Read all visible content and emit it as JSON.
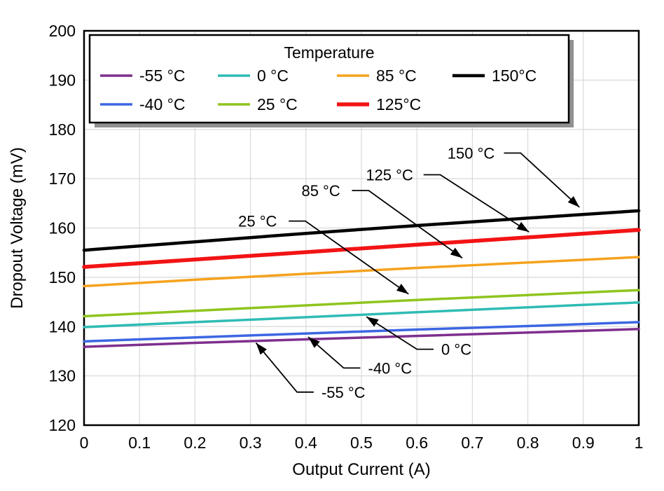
{
  "chart_data": {
    "type": "line",
    "title": "",
    "xlabel": "Output Current (A)",
    "ylabel": "Dropout Voltage (mV)",
    "xlim": [
      0,
      1
    ],
    "ylim": [
      120,
      200
    ],
    "grid": true,
    "grid_color": "#d9d9d9",
    "axis_color": "#000000",
    "xticks": {
      "values": [
        0,
        0.1,
        0.2,
        0.3,
        0.4,
        0.5,
        0.6,
        0.7,
        0.8,
        0.9,
        1
      ],
      "labels": [
        "0",
        "0.1",
        "0.2",
        "0.3",
        "0.4",
        "0.5",
        "0.6",
        "0.7",
        "0.8",
        "0.9",
        "1"
      ]
    },
    "yticks": {
      "values": [
        120,
        130,
        140,
        150,
        160,
        170,
        180,
        190,
        200
      ],
      "labels": [
        "120",
        "130",
        "140",
        "150",
        "160",
        "170",
        "180",
        "190",
        "200"
      ]
    },
    "x": [
      0,
      0.2,
      0.4,
      0.6,
      0.8,
      1.0
    ],
    "series": [
      {
        "name": "-55 °C",
        "color": "#7E2F8E",
        "line_width": 3.5,
        "values": [
          135.9,
          136.7,
          137.4,
          138.1,
          138.8,
          139.5
        ]
      },
      {
        "name": "-40 °C",
        "color": "#3C66E2",
        "line_width": 3.5,
        "values": [
          137.0,
          137.8,
          138.6,
          139.4,
          140.1,
          140.9
        ]
      },
      {
        "name": "0 °C",
        "color": "#2FBCB4",
        "line_width": 3.5,
        "values": [
          139.9,
          140.9,
          141.9,
          142.9,
          143.9,
          144.9
        ]
      },
      {
        "name": "25 °C",
        "color": "#8FC41E",
        "line_width": 3.5,
        "values": [
          142.1,
          143.2,
          144.3,
          145.4,
          146.4,
          147.4
        ]
      },
      {
        "name": "85 °C",
        "color": "#F5A21D",
        "line_width": 3.5,
        "values": [
          148.2,
          149.5,
          150.7,
          151.9,
          153.0,
          154.1
        ]
      },
      {
        "name": "125 °C",
        "color": "#F21414",
        "line_width": 5.5,
        "values": [
          152.1,
          153.6,
          155.1,
          156.6,
          158.1,
          159.6
        ]
      },
      {
        "name": "150 °C",
        "color": "#000000",
        "line_width": 4.5,
        "values": [
          155.5,
          157.2,
          158.9,
          160.5,
          162.0,
          163.5
        ]
      }
    ],
    "legend": {
      "title": "Temperature",
      "position": "top",
      "entries": [
        {
          "label": "-55 °C",
          "series": 0
        },
        {
          "label": "0 °C",
          "series": 2
        },
        {
          "label": "85 °C",
          "series": 4
        },
        {
          "label": "150°C",
          "series": 6
        },
        {
          "label": "-40 °C",
          "series": 1
        },
        {
          "label": "25 °C",
          "series": 3
        },
        {
          "label": "125°C",
          "series": 5
        }
      ]
    },
    "annotations": [
      {
        "label": "150 °C",
        "text_x": 0.655,
        "text_y": 175.2,
        "anchor": "start",
        "line": [
          [
            0.757,
            175.2
          ],
          [
            0.787,
            175.2
          ],
          [
            0.893,
            164.2
          ]
        ]
      },
      {
        "label": "125 °C",
        "text_x": 0.508,
        "text_y": 170.8,
        "anchor": "start",
        "line": [
          [
            0.612,
            170.8
          ],
          [
            0.642,
            170.8
          ],
          [
            0.802,
            159.2
          ]
        ]
      },
      {
        "label": "85 °C",
        "text_x": 0.392,
        "text_y": 167.6,
        "anchor": "start",
        "line": [
          [
            0.483,
            167.6
          ],
          [
            0.513,
            167.6
          ],
          [
            0.682,
            153.9
          ]
        ]
      },
      {
        "label": "25 °C",
        "text_x": 0.278,
        "text_y": 161.4,
        "anchor": "start",
        "line": [
          [
            0.369,
            161.4
          ],
          [
            0.399,
            161.4
          ],
          [
            0.585,
            146.6
          ]
        ]
      },
      {
        "label": "0 °C",
        "text_x": 0.644,
        "text_y": 135.4,
        "anchor": "start",
        "line": [
          [
            0.63,
            135.4
          ],
          [
            0.6,
            135.4
          ],
          [
            0.509,
            142.0
          ]
        ]
      },
      {
        "label": "-40 °C",
        "text_x": 0.512,
        "text_y": 131.6,
        "anchor": "start",
        "line": [
          [
            0.498,
            131.6
          ],
          [
            0.468,
            131.6
          ],
          [
            0.404,
            137.9
          ]
        ]
      },
      {
        "label": "-55 °C",
        "text_x": 0.428,
        "text_y": 126.7,
        "anchor": "start",
        "line": [
          [
            0.414,
            126.7
          ],
          [
            0.384,
            126.7
          ],
          [
            0.31,
            136.7
          ]
        ]
      }
    ]
  }
}
